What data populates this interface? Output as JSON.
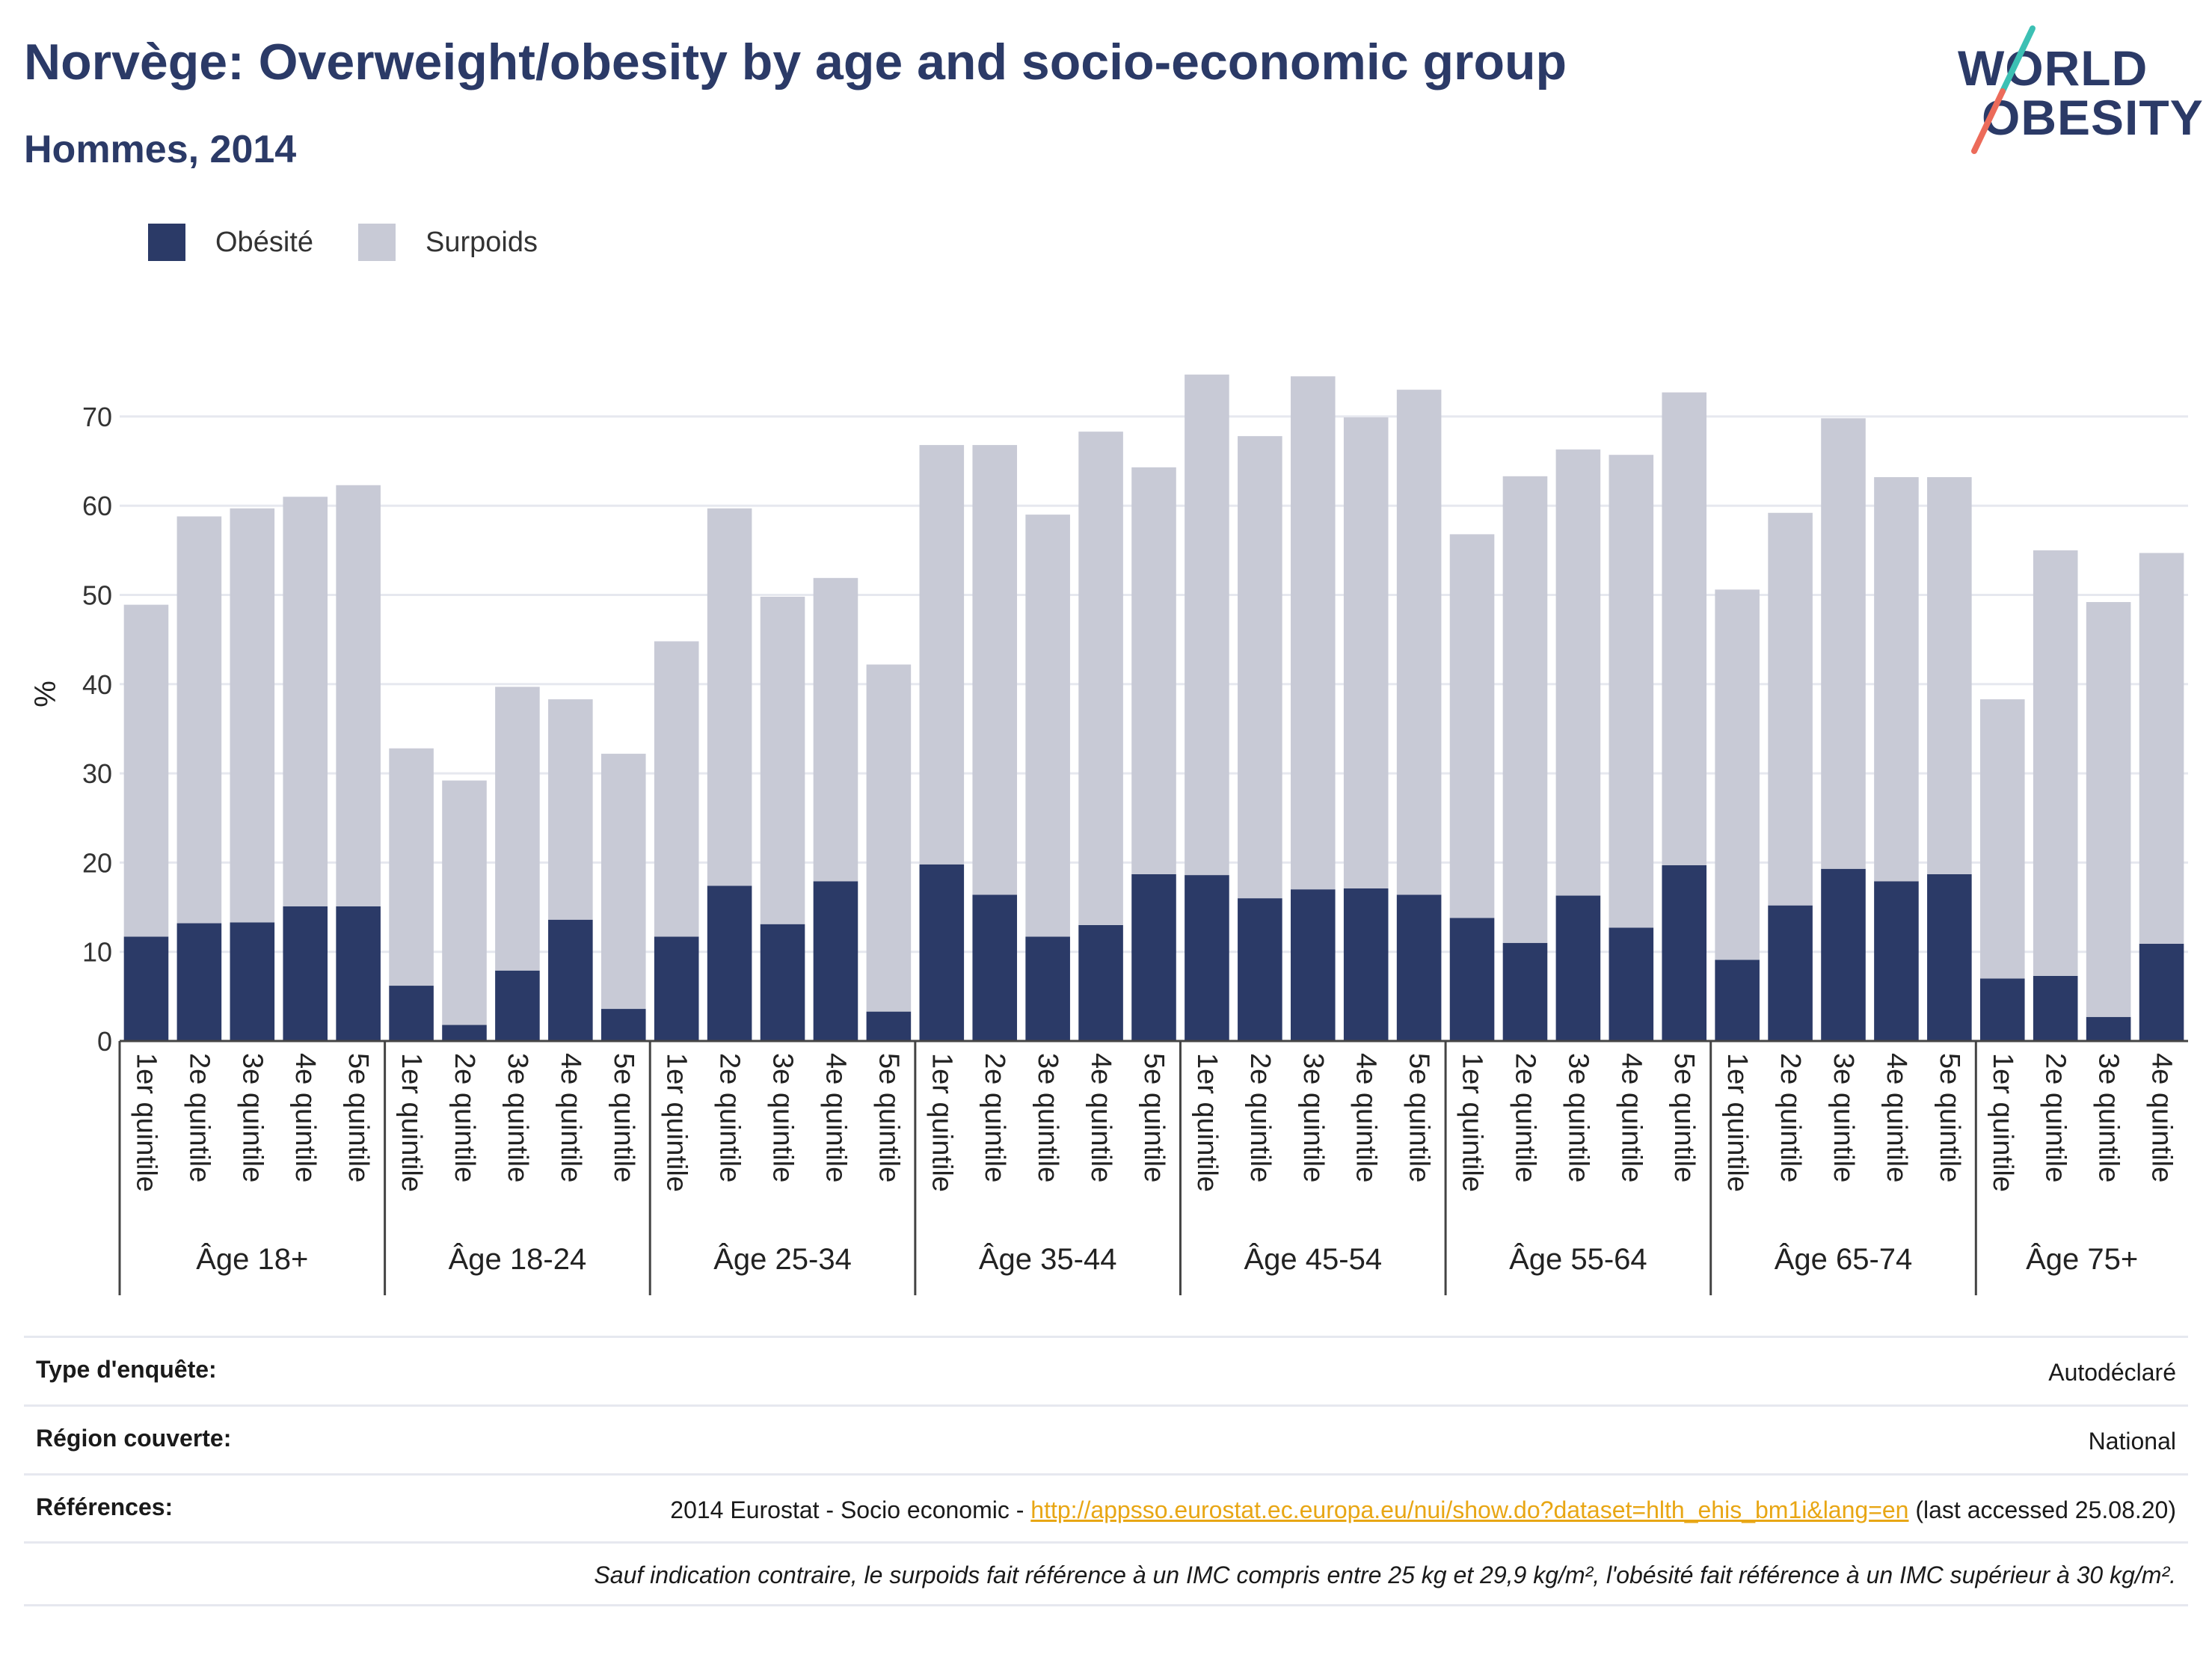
{
  "header": {
    "title": "Norvège: Overweight/obesity by age and socio-economic group",
    "subtitle": "Hommes, 2014"
  },
  "logo": {
    "line1": "WORLD",
    "line2": "OBESITY",
    "colors": {
      "text": "#2b3a67",
      "slash_top": "#3cc0b4",
      "slash_bottom": "#ec6b5a"
    }
  },
  "colors": {
    "obesity": "#2b3a67",
    "overweight": "#c8cad6",
    "grid": "#e6e8ef",
    "axis": "#444444"
  },
  "chart_data": {
    "type": "bar",
    "stacked": true,
    "ylabel": "%",
    "ylim": [
      0,
      75
    ],
    "yticks": [
      0,
      10,
      20,
      30,
      40,
      50,
      60,
      70
    ],
    "grid": true,
    "legend_position": "top-left",
    "groups": [
      {
        "label": "Âge 18+",
        "categories": [
          "1er quintile",
          "2e quintile",
          "3e quintile",
          "4e quintile",
          "5e quintile"
        ]
      },
      {
        "label": "Âge 18-24",
        "categories": [
          "1er quintile",
          "2e quintile",
          "3e quintile",
          "4e quintile",
          "5e quintile"
        ]
      },
      {
        "label": "Âge 25-34",
        "categories": [
          "1er quintile",
          "2e quintile",
          "3e quintile",
          "4e quintile",
          "5e quintile"
        ]
      },
      {
        "label": "Âge 35-44",
        "categories": [
          "1er quintile",
          "2e quintile",
          "3e quintile",
          "4e quintile",
          "5e quintile"
        ]
      },
      {
        "label": "Âge 45-54",
        "categories": [
          "1er quintile",
          "2e quintile",
          "3e quintile",
          "4e quintile",
          "5e quintile"
        ]
      },
      {
        "label": "Âge 55-64",
        "categories": [
          "1er quintile",
          "2e quintile",
          "3e quintile",
          "4e quintile",
          "5e quintile"
        ]
      },
      {
        "label": "Âge 65-74",
        "categories": [
          "1er quintile",
          "2e quintile",
          "3e quintile",
          "4e quintile",
          "5e quintile"
        ]
      },
      {
        "label": "Âge 75+",
        "categories": [
          "1er quintile",
          "2e quintile",
          "3e quintile",
          "4e quintile"
        ]
      }
    ],
    "series": [
      {
        "name": "Obésité",
        "values": [
          11.7,
          13.2,
          13.3,
          15.1,
          15.1,
          6.2,
          1.8,
          7.9,
          13.6,
          3.6,
          11.7,
          17.4,
          13.1,
          17.9,
          3.3,
          19.8,
          16.4,
          11.7,
          13.0,
          18.7,
          18.6,
          16.0,
          17.0,
          17.1,
          16.4,
          13.8,
          11.0,
          16.3,
          12.7,
          19.7,
          9.1,
          15.2,
          19.3,
          17.9,
          18.7,
          7.0,
          7.3,
          2.7,
          10.9
        ]
      },
      {
        "name": "Surpoids",
        "values": [
          37.2,
          45.6,
          46.4,
          45.9,
          47.2,
          26.6,
          27.4,
          31.8,
          24.7,
          28.6,
          33.1,
          42.3,
          36.7,
          34.0,
          38.9,
          47.0,
          50.4,
          47.3,
          55.3,
          45.6,
          56.1,
          51.8,
          57.5,
          52.8,
          56.6,
          43.0,
          52.3,
          50.0,
          53.0,
          53.0,
          41.5,
          44.0,
          50.5,
          45.3,
          44.5,
          31.3,
          47.7,
          46.5,
          43.8
        ]
      }
    ]
  },
  "info": {
    "survey_type_label": "Type d'enquête:",
    "survey_type_value": "Autodéclaré",
    "region_label": "Région couverte:",
    "region_value": "National",
    "references_label": "Références:",
    "references_prefix": "2014 Eurostat - Socio economic - ",
    "references_link": "http://appsso.eurostat.ec.europa.eu/nui/show.do?dataset=hlth_ehis_bm1i&lang=en",
    "references_suffix": " (last accessed 25.08.20)",
    "note": "Sauf indication contraire, le surpoids fait référence à un IMC compris entre 25 kg et 29,9 kg/m², l'obésité fait référence à un IMC supérieur à 30 kg/m²."
  }
}
